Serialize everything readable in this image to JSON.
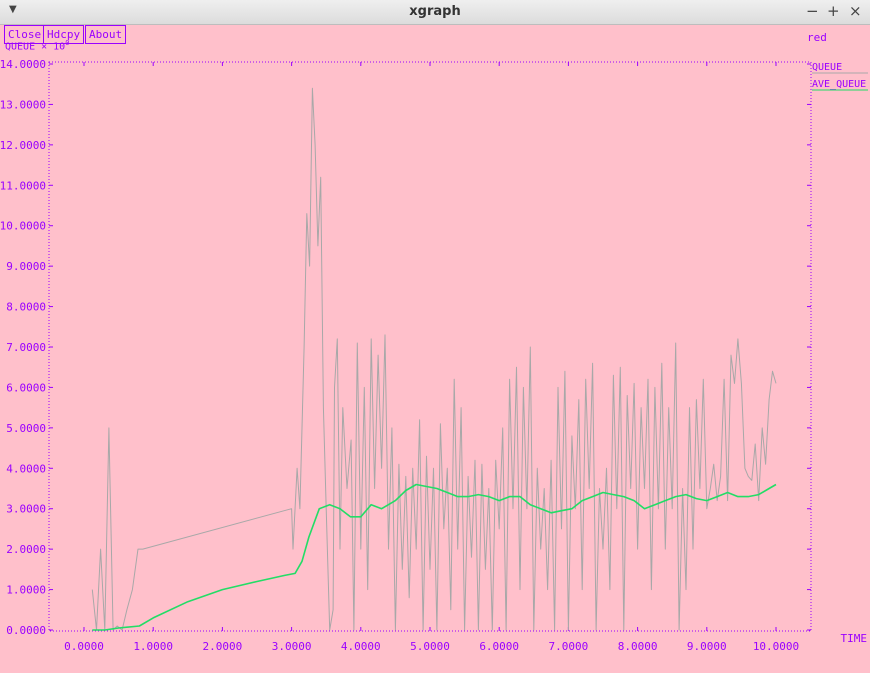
{
  "window": {
    "title": "xgraph"
  },
  "buttons": {
    "close": "Close",
    "hdcpy": "Hdcpy",
    "about": "About"
  },
  "header": {
    "set_name": "red",
    "y_unit_label": "QUEUE × 10",
    "y_unit_exp": "0"
  },
  "legend": [
    {
      "name": "QUEUE",
      "color": "#a8a8a8"
    },
    {
      "name": "AVE_QUEUE",
      "color": "#22dd66"
    }
  ],
  "colors": {
    "background": "#ffc0cb",
    "axis": "#9b00ff"
  },
  "chart_data": {
    "type": "line",
    "xlabel": "TIME",
    "ylabel": "QUEUE × 10⁰",
    "xlim": [
      0,
      10.0
    ],
    "ylim": [
      0,
      14.0
    ],
    "x_ticks": [
      "0.0000",
      "1.0000",
      "2.0000",
      "3.0000",
      "4.0000",
      "5.0000",
      "6.0000",
      "7.0000",
      "8.0000",
      "9.0000",
      "10.0000"
    ],
    "y_ticks": [
      "0.0000",
      "1.0000",
      "2.0000",
      "3.0000",
      "4.0000",
      "5.0000",
      "6.0000",
      "7.0000",
      "8.0000",
      "9.0000",
      "10.0000",
      "11.0000",
      "12.0000",
      "13.0000",
      "14.0000"
    ],
    "grid": false,
    "legend_position": "right",
    "series": [
      {
        "name": "QUEUE",
        "x": [
          0.12,
          0.18,
          0.24,
          0.3,
          0.36,
          0.42,
          0.48,
          0.55,
          0.62,
          0.7,
          0.78,
          0.85,
          3.0,
          3.02,
          3.08,
          3.12,
          3.18,
          3.22,
          3.26,
          3.3,
          3.34,
          3.38,
          3.42,
          3.46,
          3.5,
          3.55,
          3.6,
          3.62,
          3.66,
          3.7,
          3.74,
          3.8,
          3.86,
          3.9,
          3.95,
          4.0,
          4.05,
          4.1,
          4.15,
          4.2,
          4.25,
          4.3,
          4.35,
          4.4,
          4.45,
          4.5,
          4.55,
          4.6,
          4.65,
          4.7,
          4.75,
          4.8,
          4.85,
          4.9,
          4.95,
          5.0,
          5.05,
          5.1,
          5.15,
          5.2,
          5.25,
          5.3,
          5.35,
          5.4,
          5.45,
          5.5,
          5.55,
          5.6,
          5.65,
          5.7,
          5.75,
          5.8,
          5.85,
          5.9,
          5.95,
          6.0,
          6.05,
          6.1,
          6.15,
          6.2,
          6.25,
          6.3,
          6.35,
          6.4,
          6.45,
          6.5,
          6.55,
          6.6,
          6.65,
          6.7,
          6.75,
          6.8,
          6.85,
          6.9,
          6.95,
          7.0,
          7.05,
          7.1,
          7.15,
          7.2,
          7.25,
          7.3,
          7.35,
          7.4,
          7.45,
          7.5,
          7.55,
          7.6,
          7.65,
          7.7,
          7.75,
          7.8,
          7.85,
          7.9,
          7.95,
          8.0,
          8.05,
          8.1,
          8.15,
          8.2,
          8.25,
          8.3,
          8.35,
          8.4,
          8.45,
          8.5,
          8.55,
          8.6,
          8.65,
          8.7,
          8.75,
          8.8,
          8.85,
          8.9,
          8.95,
          9.0,
          9.05,
          9.1,
          9.15,
          9.2,
          9.25,
          9.3,
          9.35,
          9.4,
          9.45,
          9.5,
          9.55,
          9.6,
          9.65,
          9.7,
          9.75,
          9.8,
          9.85,
          9.9,
          9.95,
          10.0
        ],
        "y": [
          1.0,
          0.0,
          2.0,
          0.0,
          5.0,
          0.0,
          0.1,
          0.0,
          0.5,
          1.0,
          2.0,
          2.0,
          3.0,
          2.0,
          4.0,
          3.0,
          7.0,
          10.3,
          9.0,
          13.4,
          12.0,
          9.5,
          11.2,
          5.5,
          3.0,
          0.0,
          0.5,
          6.0,
          7.2,
          2.0,
          5.5,
          3.5,
          4.7,
          0.0,
          7.1,
          2.0,
          6.0,
          1.0,
          7.2,
          3.5,
          6.8,
          4.0,
          7.3,
          2.0,
          5.0,
          0.0,
          4.1,
          1.5,
          3.8,
          0.8,
          4.0,
          2.0,
          5.2,
          0.0,
          4.3,
          1.5,
          4.0,
          0.0,
          5.1,
          2.5,
          4.0,
          0.5,
          6.2,
          2.0,
          5.5,
          0.0,
          3.8,
          1.8,
          4.2,
          0.0,
          4.1,
          1.5,
          3.5,
          0.0,
          4.2,
          2.5,
          5.0,
          0.0,
          6.2,
          3.0,
          6.5,
          1.0,
          6.0,
          3.0,
          7.0,
          0.0,
          4.0,
          2.0,
          3.5,
          1.0,
          4.2,
          0.0,
          6.0,
          2.5,
          6.4,
          0.0,
          4.8,
          3.0,
          5.7,
          1.0,
          6.2,
          3.5,
          6.6,
          0.0,
          3.5,
          2.0,
          4.0,
          1.0,
          6.3,
          3.0,
          6.5,
          0.0,
          5.8,
          3.5,
          6.1,
          2.0,
          5.5,
          3.5,
          6.2,
          1.0,
          6.0,
          3.0,
          6.6,
          2.0,
          5.5,
          3.0,
          7.1,
          0.0,
          3.5,
          1.0,
          5.5,
          2.0,
          5.7,
          3.5,
          6.2,
          3.0,
          3.5,
          4.1,
          3.2,
          3.8,
          6.2,
          3.2,
          6.8,
          6.1,
          7.2,
          6.1,
          4.0,
          3.8,
          3.7,
          4.6,
          3.2,
          5.0,
          4.1,
          5.7,
          6.4,
          6.1
        ]
      },
      {
        "name": "AVE_QUEUE",
        "x": [
          0.12,
          0.3,
          0.5,
          0.8,
          1.0,
          1.5,
          2.0,
          2.5,
          2.9,
          3.05,
          3.15,
          3.25,
          3.4,
          3.55,
          3.7,
          3.85,
          4.0,
          4.15,
          4.3,
          4.5,
          4.65,
          4.8,
          4.95,
          5.1,
          5.25,
          5.4,
          5.55,
          5.7,
          5.85,
          6.0,
          6.15,
          6.3,
          6.45,
          6.6,
          6.75,
          6.9,
          7.05,
          7.2,
          7.35,
          7.5,
          7.65,
          7.8,
          7.95,
          8.1,
          8.25,
          8.4,
          8.55,
          8.7,
          8.85,
          9.0,
          9.15,
          9.3,
          9.45,
          9.6,
          9.75,
          9.9,
          10.0
        ],
        "y": [
          0.0,
          0.0,
          0.05,
          0.1,
          0.3,
          0.7,
          1.0,
          1.2,
          1.35,
          1.4,
          1.7,
          2.3,
          3.0,
          3.1,
          3.0,
          2.8,
          2.8,
          3.1,
          3.0,
          3.2,
          3.45,
          3.6,
          3.55,
          3.5,
          3.4,
          3.3,
          3.3,
          3.35,
          3.3,
          3.2,
          3.3,
          3.3,
          3.1,
          3.0,
          2.9,
          2.95,
          3.0,
          3.2,
          3.3,
          3.4,
          3.35,
          3.3,
          3.2,
          3.0,
          3.1,
          3.2,
          3.3,
          3.35,
          3.25,
          3.2,
          3.3,
          3.4,
          3.3,
          3.3,
          3.35,
          3.5,
          3.6
        ]
      }
    ]
  }
}
